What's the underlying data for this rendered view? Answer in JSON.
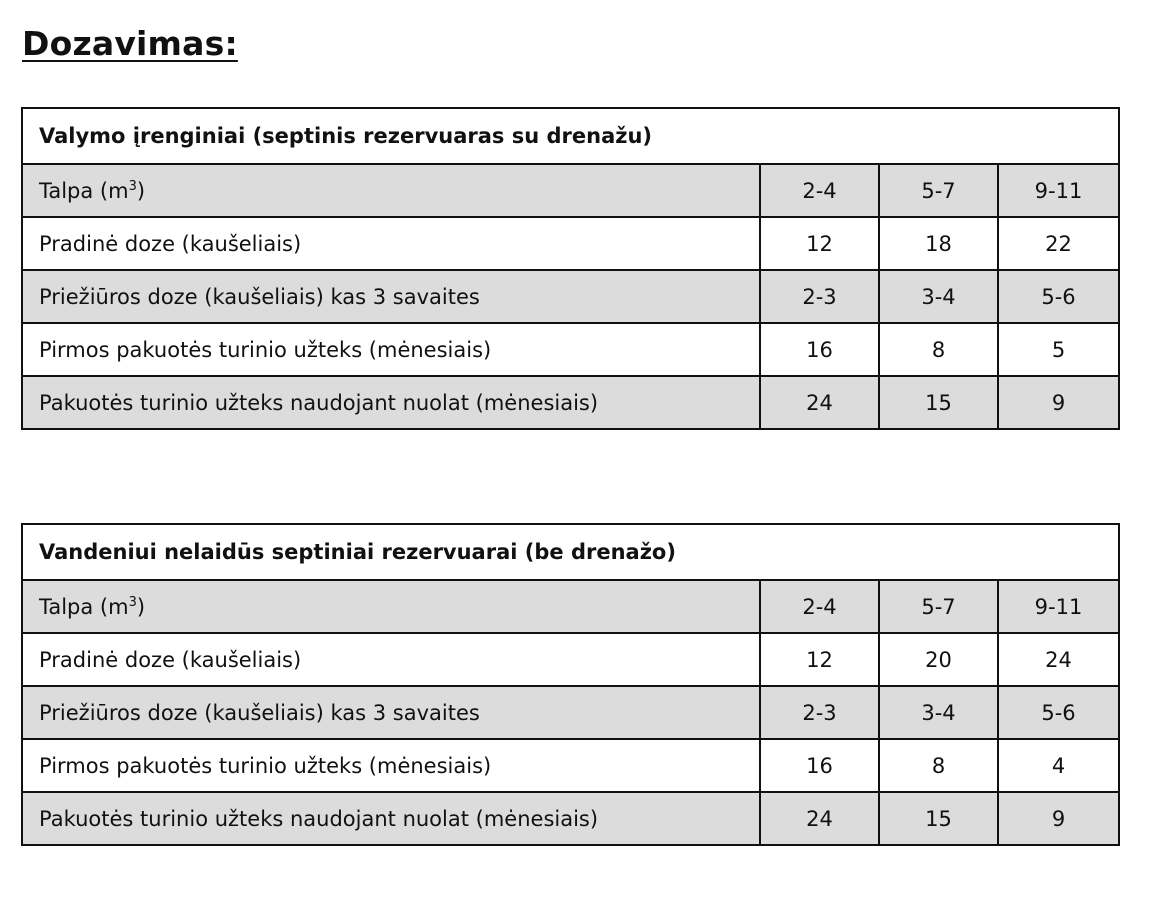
{
  "page_title": "Dozavimas:",
  "tables": [
    {
      "caption": "Valymo įrenginiai (septinis rezervuaras su drenažu)",
      "header": {
        "label": "Talpa (m",
        "label_sup": "3",
        "label_end": ")",
        "values": [
          "2-4",
          "5-7",
          "9-11"
        ]
      },
      "rows": [
        {
          "label": "Pradinė doze (kaušeliais)",
          "values": [
            "12",
            "18",
            "22"
          ]
        },
        {
          "label": "Priežiūros doze (kaušeliais) kas 3 savaites",
          "values": [
            "2-3",
            "3-4",
            "5-6"
          ]
        },
        {
          "label": "Pirmos pakuotės turinio užteks (mėnesiais)",
          "values": [
            "16",
            "8",
            "5"
          ]
        },
        {
          "label": "Pakuotės turinio užteks naudojant nuolat (mėnesiais)",
          "values": [
            "24",
            "15",
            "9"
          ]
        }
      ]
    },
    {
      "caption": "Vandeniui nelaidūs septiniai rezervuarai (be drenažo)",
      "header": {
        "label": "Talpa (m",
        "label_sup": "3",
        "label_end": ")",
        "values": [
          "2-4",
          "5-7",
          "9-11"
        ]
      },
      "rows": [
        {
          "label": "Pradinė doze (kaušeliais)",
          "values": [
            "12",
            "20",
            "24"
          ]
        },
        {
          "label": "Priežiūros doze (kaušeliais) kas 3 savaites",
          "values": [
            "2-3",
            "3-4",
            "5-6"
          ]
        },
        {
          "label": "Pirmos pakuotės turinio užteks (mėnesiais)",
          "values": [
            "16",
            "8",
            "4"
          ]
        },
        {
          "label": "Pakuotės turinio užteks naudojant nuolat (mėnesiais)",
          "values": [
            "24",
            "15",
            "9"
          ]
        }
      ]
    }
  ],
  "colors": {
    "shaded_row": "#dcdcdc",
    "border": "#111111",
    "text": "#111111"
  }
}
